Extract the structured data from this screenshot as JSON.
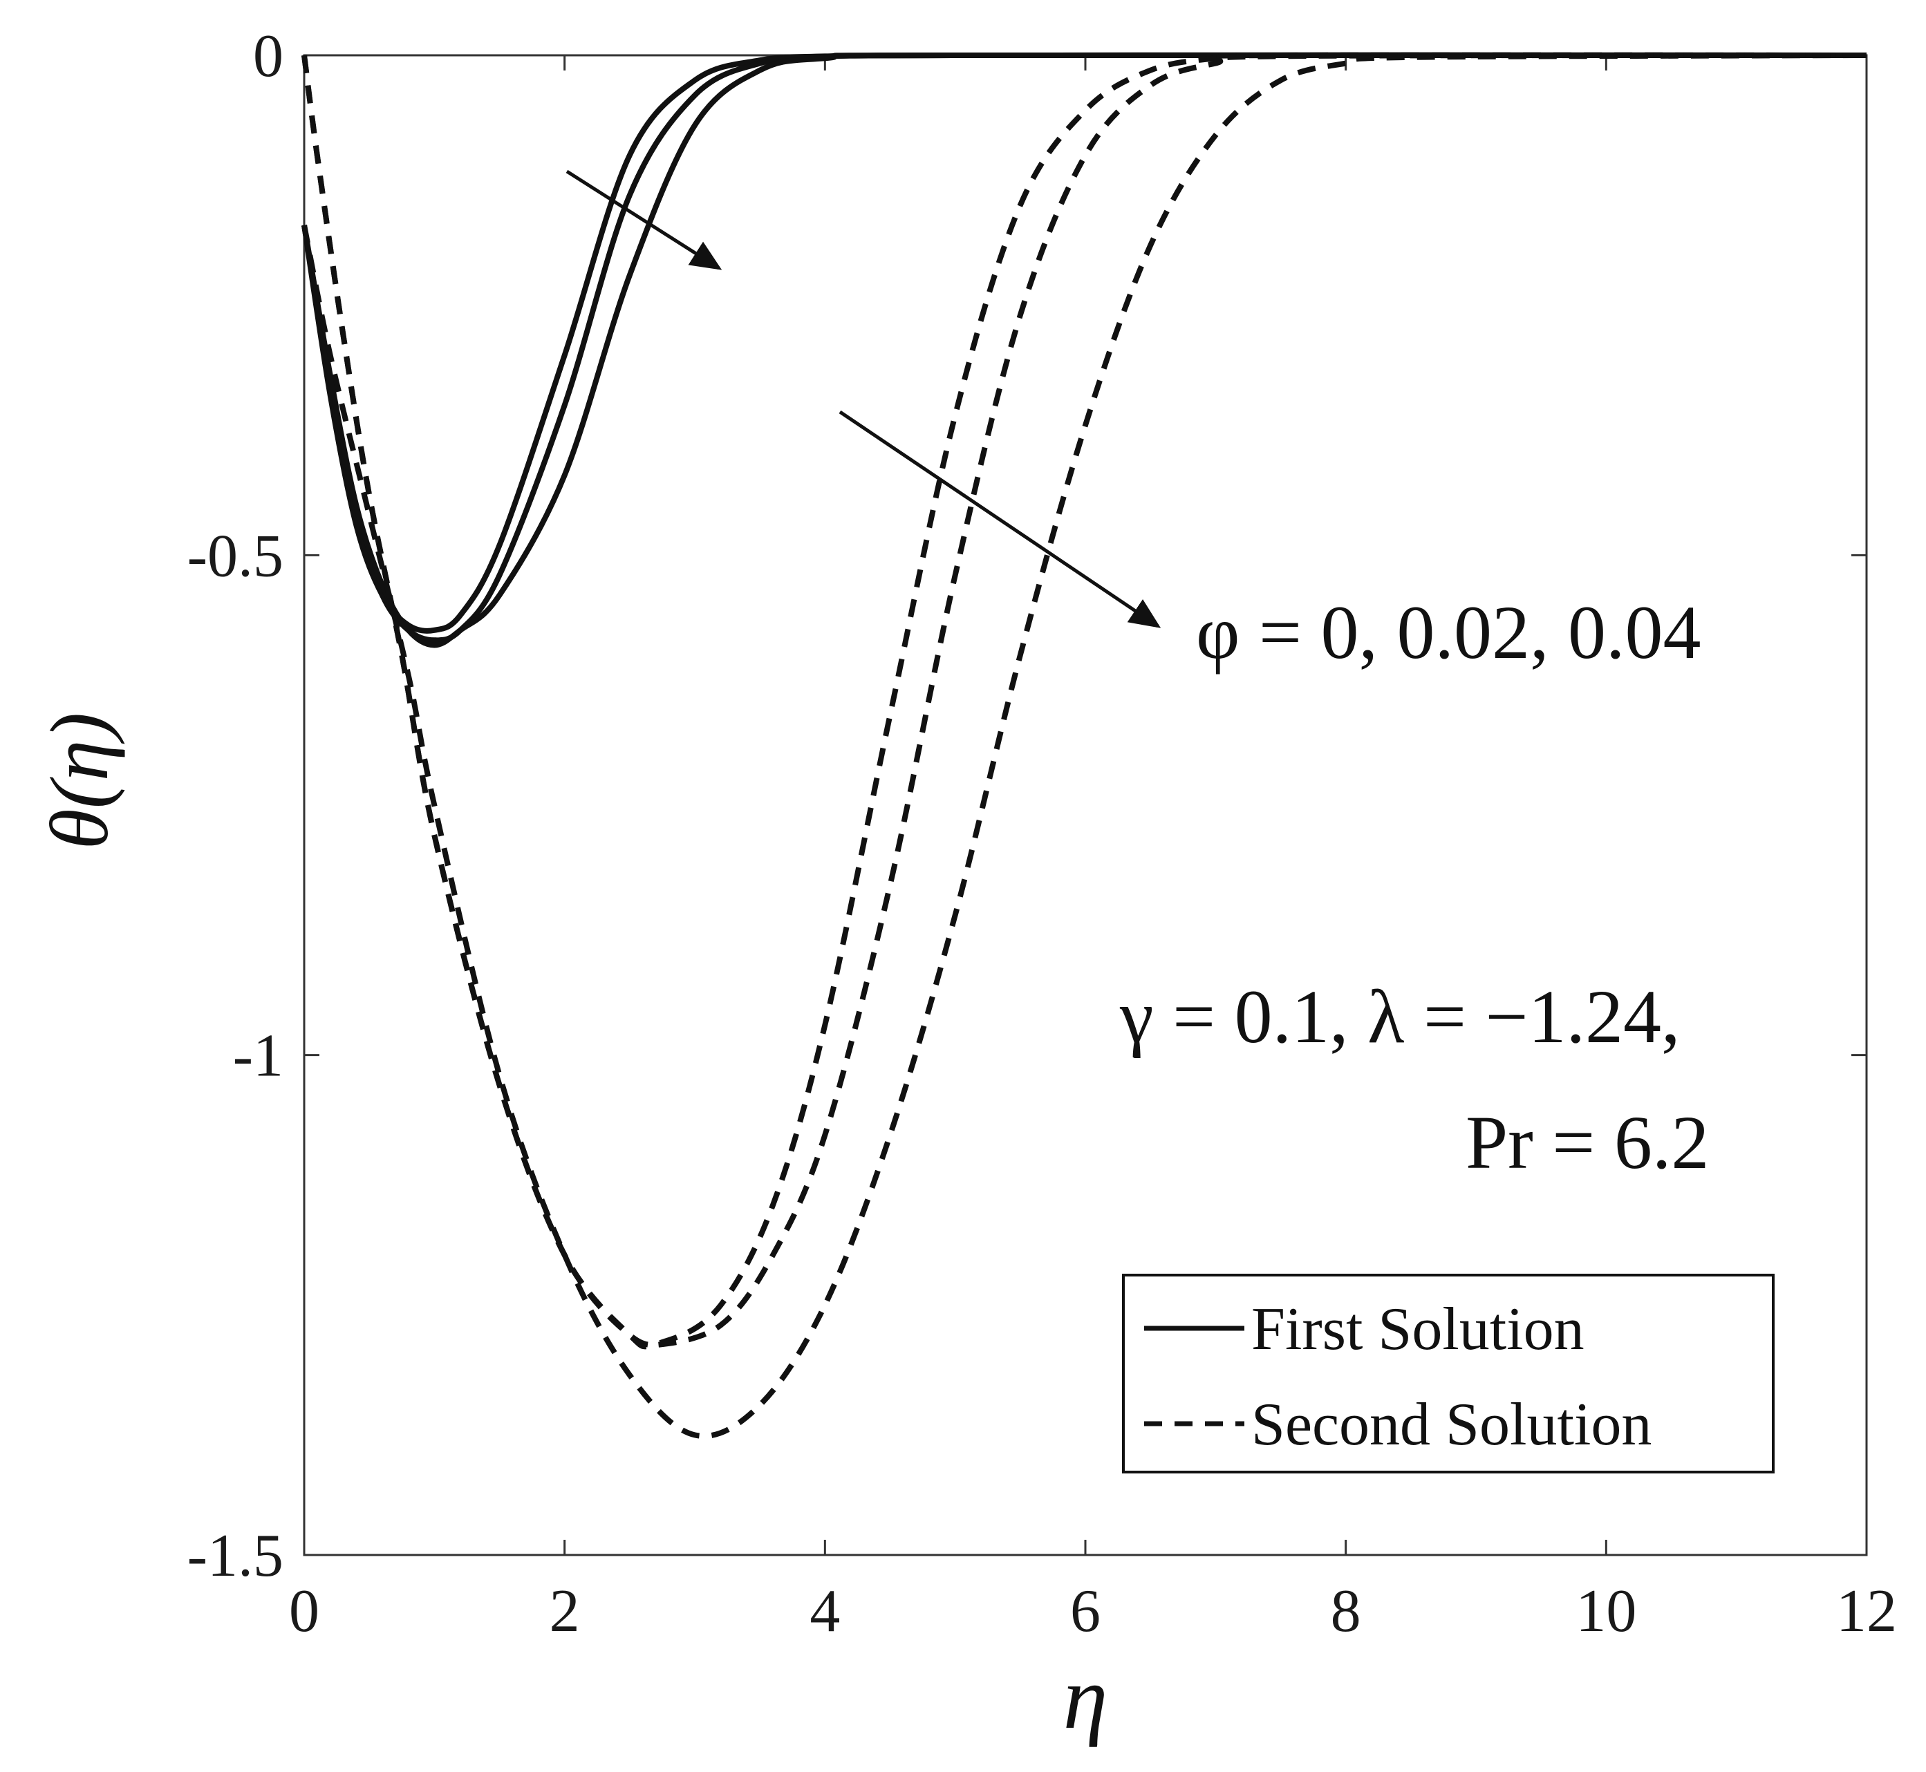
{
  "chart_data": {
    "type": "line",
    "xlabel": "η",
    "ylabel": "θ(η)",
    "xlim": [
      0,
      12
    ],
    "ylim": [
      -1.5,
      0
    ],
    "xticks": [
      "0",
      "2",
      "4",
      "6",
      "8",
      "10",
      "12"
    ],
    "yticks": [
      "0",
      "-0.5",
      "-1",
      "-1.5"
    ],
    "grid": false,
    "legend": {
      "placement": "bottom-right",
      "entries": [
        {
          "label": "First Solution",
          "style": "solid"
        },
        {
          "label": "Second Solution",
          "style": "dashed"
        }
      ]
    },
    "annotations": {
      "phi": "φ = 0, 0.02, 0.04",
      "params_line1": "γ = 0.1, λ = −1.24,",
      "params_line2": "Pr = 6.2"
    },
    "series": [
      {
        "group": "First Solution",
        "style": "solid",
        "points": [
          [
            0,
            -0.17
          ],
          [
            0.2,
            -0.34
          ],
          [
            0.4,
            -0.47
          ],
          [
            0.6,
            -0.54
          ],
          [
            0.8,
            -0.57
          ],
          [
            1.0,
            -0.575
          ],
          [
            1.2,
            -0.56
          ],
          [
            1.5,
            -0.49
          ],
          [
            2.0,
            -0.3
          ],
          [
            2.5,
            -0.1
          ],
          [
            3.0,
            -0.025
          ],
          [
            3.5,
            -0.005
          ],
          [
            4.0,
            -0.001
          ],
          [
            5.0,
            0
          ],
          [
            12.0,
            0
          ]
        ]
      },
      {
        "group": "First Solution",
        "style": "solid",
        "points": [
          [
            0,
            -0.17
          ],
          [
            0.2,
            -0.33
          ],
          [
            0.4,
            -0.46
          ],
          [
            0.6,
            -0.54
          ],
          [
            0.8,
            -0.575
          ],
          [
            1.0,
            -0.585
          ],
          [
            1.2,
            -0.575
          ],
          [
            1.5,
            -0.52
          ],
          [
            2.0,
            -0.35
          ],
          [
            2.5,
            -0.14
          ],
          [
            3.0,
            -0.04
          ],
          [
            3.5,
            -0.008
          ],
          [
            4.0,
            -0.002
          ],
          [
            5.0,
            0
          ],
          [
            12.0,
            0
          ]
        ]
      },
      {
        "group": "First Solution",
        "style": "solid",
        "points": [
          [
            0,
            -0.17
          ],
          [
            0.2,
            -0.32
          ],
          [
            0.4,
            -0.45
          ],
          [
            0.6,
            -0.53
          ],
          [
            0.8,
            -0.575
          ],
          [
            1.0,
            -0.59
          ],
          [
            1.2,
            -0.575
          ],
          [
            1.5,
            -0.54
          ],
          [
            2.0,
            -0.42
          ],
          [
            2.5,
            -0.22
          ],
          [
            3.0,
            -0.07
          ],
          [
            3.5,
            -0.015
          ],
          [
            4.0,
            -0.003
          ],
          [
            5.0,
            0
          ],
          [
            12.0,
            0
          ]
        ]
      },
      {
        "group": "Second Solution",
        "style": "dashed",
        "points": [
          [
            0,
            0
          ],
          [
            0.1,
            -0.1
          ],
          [
            0.3,
            -0.28
          ],
          [
            0.5,
            -0.44
          ],
          [
            0.75,
            -0.6
          ],
          [
            1.0,
            -0.78
          ],
          [
            1.5,
            -1.03
          ],
          [
            2.0,
            -1.2
          ],
          [
            2.5,
            -1.28
          ],
          [
            2.8,
            -1.285
          ],
          [
            3.2,
            -1.25
          ],
          [
            3.6,
            -1.15
          ],
          [
            4.0,
            -0.97
          ],
          [
            4.5,
            -0.66
          ],
          [
            5.0,
            -0.36
          ],
          [
            5.5,
            -0.15
          ],
          [
            6.0,
            -0.055
          ],
          [
            6.5,
            -0.015
          ],
          [
            7.0,
            -0.003
          ],
          [
            7.5,
            0
          ],
          [
            12.0,
            0
          ]
        ]
      },
      {
        "group": "Second Solution",
        "style": "dashed",
        "points": [
          [
            0,
            0
          ],
          [
            0.1,
            -0.1
          ],
          [
            0.3,
            -0.28
          ],
          [
            0.5,
            -0.44
          ],
          [
            0.75,
            -0.6
          ],
          [
            1.0,
            -0.78
          ],
          [
            1.5,
            -1.03
          ],
          [
            2.0,
            -1.2
          ],
          [
            2.5,
            -1.28
          ],
          [
            2.7,
            -1.29
          ],
          [
            3.2,
            -1.27
          ],
          [
            3.6,
            -1.2
          ],
          [
            4.0,
            -1.08
          ],
          [
            4.5,
            -0.83
          ],
          [
            5.0,
            -0.52
          ],
          [
            5.5,
            -0.26
          ],
          [
            6.0,
            -0.1
          ],
          [
            6.5,
            -0.03
          ],
          [
            7.0,
            -0.008
          ],
          [
            7.5,
            -0.001
          ],
          [
            12.0,
            0
          ]
        ]
      },
      {
        "group": "Second Solution",
        "style": "dashed",
        "points": [
          [
            0,
            -0.17
          ],
          [
            0.2,
            -0.3
          ],
          [
            0.5,
            -0.46
          ],
          [
            0.8,
            -0.62
          ],
          [
            1.0,
            -0.75
          ],
          [
            1.5,
            -1.02
          ],
          [
            2.0,
            -1.2
          ],
          [
            2.5,
            -1.32
          ],
          [
            3.0,
            -1.38
          ],
          [
            3.5,
            -1.35
          ],
          [
            4.0,
            -1.25
          ],
          [
            4.5,
            -1.08
          ],
          [
            5.0,
            -0.86
          ],
          [
            5.5,
            -0.6
          ],
          [
            6.0,
            -0.37
          ],
          [
            6.5,
            -0.19
          ],
          [
            7.0,
            -0.08
          ],
          [
            7.5,
            -0.025
          ],
          [
            8.0,
            -0.008
          ],
          [
            8.5,
            -0.002
          ],
          [
            12.0,
            0
          ]
        ]
      }
    ]
  }
}
